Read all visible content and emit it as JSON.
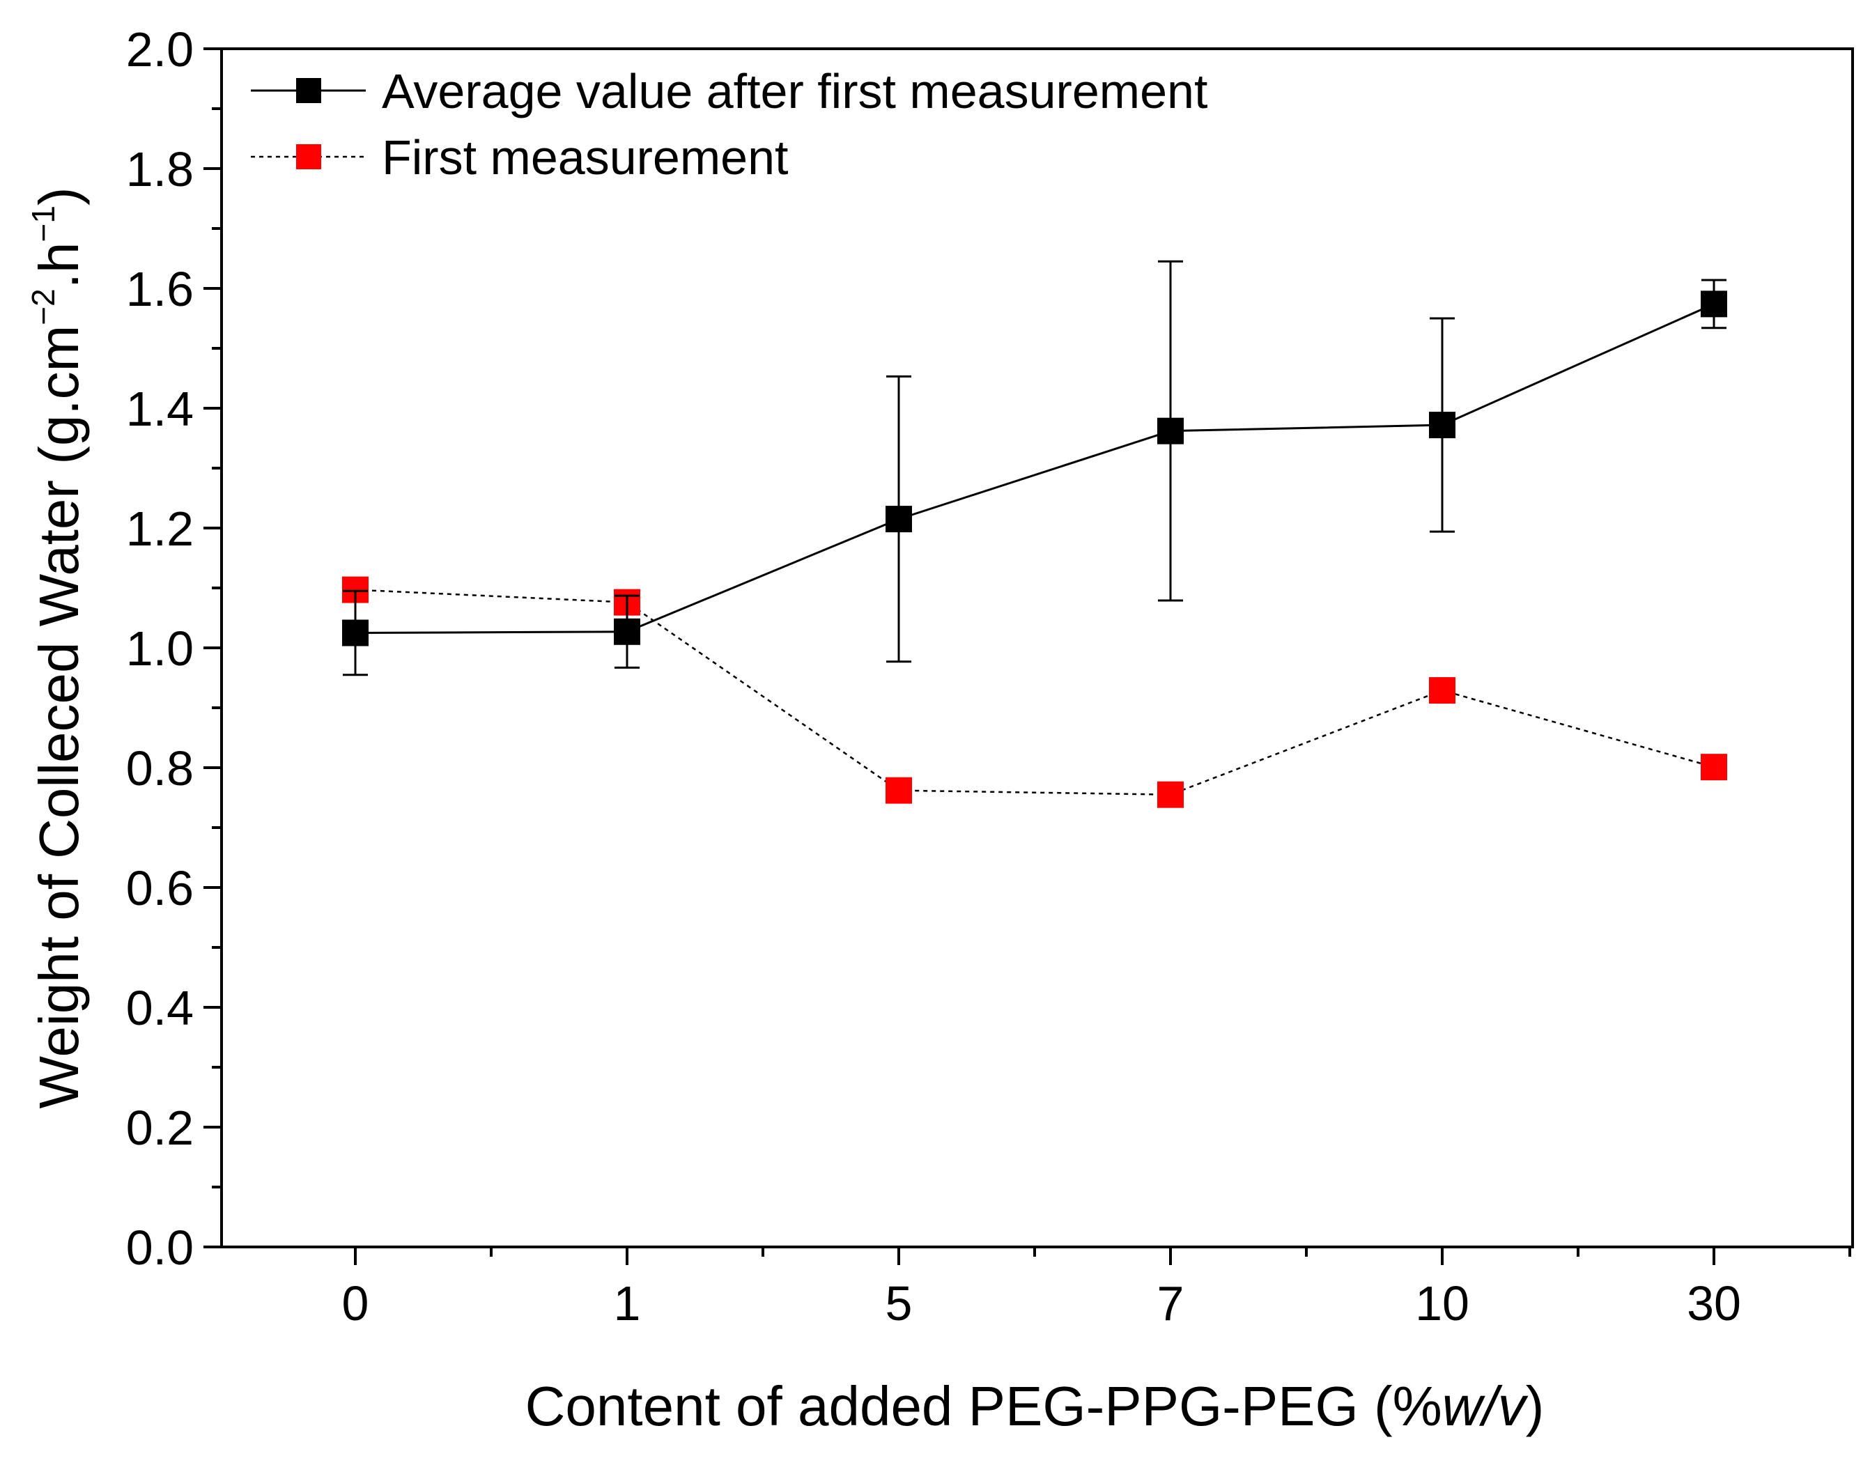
{
  "chart_data": {
    "type": "line",
    "title": "",
    "xlabel": {
      "prefix": "Content of added PEG-PPG-PEG (%",
      "italic": "w/v",
      "suffix": ")"
    },
    "ylabel": {
      "base": "Weight of Colleced Water (g.cm",
      "exp1": "−2",
      "mid": ".h",
      "exp2": "−1",
      "end": ")"
    },
    "categories": [
      "0",
      "1",
      "5",
      "7",
      "10",
      "30"
    ],
    "ylim": [
      0.0,
      2.0
    ],
    "yticks": [
      "0.0",
      "0.2",
      "0.4",
      "0.6",
      "0.8",
      "1.0",
      "1.2",
      "1.4",
      "1.6",
      "1.8",
      "2.0"
    ],
    "grid": false,
    "legend_position": "top-left",
    "series": [
      {
        "name": "Average value after first measurement",
        "values": [
          1.025,
          1.027,
          1.215,
          1.362,
          1.372,
          1.574
        ],
        "error": [
          0.07,
          0.06,
          0.238,
          0.283,
          0.178,
          0.04
        ],
        "color": "#000000",
        "line_style": "solid",
        "marker": "square"
      },
      {
        "name": "First measurement",
        "values": [
          1.097,
          1.076,
          0.762,
          0.755,
          0.929,
          0.801
        ],
        "color": "#ff0000",
        "line_style": "dotted",
        "marker": "square"
      }
    ]
  }
}
